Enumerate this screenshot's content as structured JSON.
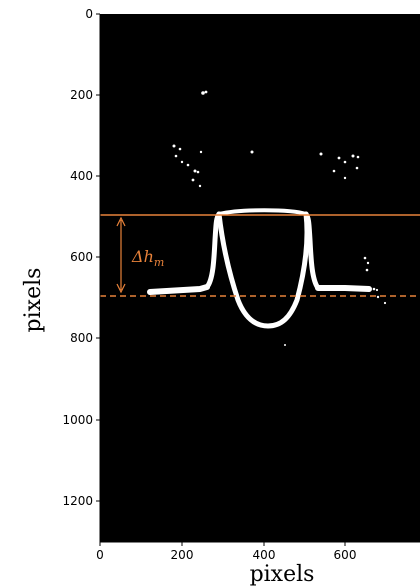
{
  "axes": {
    "xlabel": "pixels",
    "ylabel": "pixels",
    "x_ticks": [
      "0",
      "200",
      "400",
      "600"
    ],
    "y_ticks": [
      "0",
      "200",
      "400",
      "600",
      "800",
      "1000",
      "1200"
    ],
    "x_range": [
      0,
      780
    ],
    "y_range": [
      0,
      1280
    ],
    "y_inverted": true
  },
  "image": {
    "description_type": "binary particle-image of a bubble/jet interface",
    "background": "#000000",
    "foreground": "#ffffff"
  },
  "annotation": {
    "delta": "Δ",
    "h": "h",
    "subscript": "m",
    "color": "#e8823a",
    "upper_line_y": 495,
    "lower_line_y": 693
  }
}
